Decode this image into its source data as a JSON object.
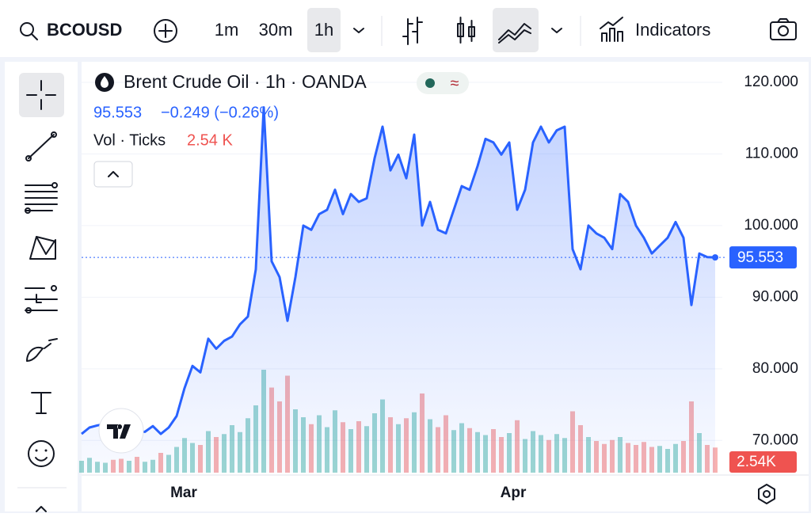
{
  "toolbar": {
    "symbol": "BCOUSD",
    "timeframes": [
      "1m",
      "30m",
      "1h"
    ],
    "indicators": "Indicators"
  },
  "chart_data": {
    "type": "area",
    "title": "Brent Crude Oil · 1h · OANDA",
    "change": "−0.249 (−0.26%)",
    "volume_legend": "Vol · Ticks",
    "volume_legend_value": "2.54 K",
    "volume_badge": "2.54K",
    "xlim": [
      0,
      80
    ],
    "xticks": [
      {
        "value": 12.9,
        "label": "Mar"
      },
      {
        "value": 54.5,
        "label": "Apr"
      }
    ],
    "ylim": [
      65.5,
      123.2
    ],
    "yticks": [
      {
        "value": 70,
        "label": "70.000"
      },
      {
        "value": 80,
        "label": "80.000"
      },
      {
        "value": 90,
        "label": "90.000"
      },
      {
        "value": 100,
        "label": "100.000"
      },
      {
        "value": 110,
        "label": "110.000"
      },
      {
        "value": 120,
        "label": "120.000"
      }
    ],
    "series": [
      {
        "name": "Brent Crude Oil",
        "color": "#2962ff",
        "values": [
          70.9,
          71.8,
          72.1,
          72.3,
          71.8,
          71.2,
          72.0,
          71.2,
          71.2,
          72.0,
          70.9,
          71.8,
          73.4,
          77.3,
          80.4,
          79.5,
          84.2,
          82.8,
          83.9,
          84.5,
          86.2,
          87.3,
          93.9,
          116.5,
          95.0,
          92.8,
          86.7,
          92.8,
          100.0,
          99.4,
          101.6,
          102.2,
          105.0,
          101.6,
          104.4,
          103.3,
          103.8,
          109.4,
          113.8,
          107.7,
          109.9,
          106.6,
          112.7,
          100.0,
          103.3,
          99.4,
          98.9,
          102.2,
          105.5,
          105.0,
          108.3,
          112.1,
          111.6,
          109.9,
          111.6,
          102.2,
          105.0,
          111.6,
          113.8,
          111.6,
          113.3,
          113.8,
          96.7,
          93.9,
          100.0,
          98.9,
          98.3,
          96.7,
          104.4,
          103.3,
          100.0,
          98.3,
          96.1,
          97.2,
          98.3,
          100.5,
          98.3,
          88.9,
          96.1,
          95.6,
          95.553
        ]
      }
    ],
    "volume": {
      "vlim": [
        0,
        12
      ],
      "up_color": "#26a69a",
      "down_color": "#ef5350",
      "values": [
        1.2,
        1.5,
        1.1,
        1.0,
        1.3,
        1.4,
        1.2,
        1.6,
        1.1,
        1.3,
        2.0,
        1.8,
        2.6,
        3.5,
        3.0,
        2.8,
        4.2,
        3.6,
        3.9,
        4.8,
        4.1,
        5.5,
        6.8,
        10.4,
        8.6,
        7.2,
        9.8,
        6.4,
        5.6,
        4.9,
        5.8,
        4.6,
        6.3,
        5.1,
        4.4,
        5.2,
        4.7,
        6.0,
        7.4,
        5.6,
        4.9,
        5.5,
        6.1,
        8.0,
        5.4,
        4.6,
        5.8,
        4.3,
        5.0,
        4.5,
        4.1,
        3.8,
        4.4,
        3.6,
        4.0,
        5.3,
        3.4,
        4.2,
        3.8,
        3.3,
        3.9,
        3.5,
        6.2,
        4.8,
        3.6,
        3.2,
        2.9,
        3.3,
        3.6,
        3.0,
        2.8,
        3.1,
        2.6,
        2.7,
        2.4,
        2.9,
        3.2,
        7.2,
        4.0,
        2.8,
        2.54
      ]
    }
  }
}
